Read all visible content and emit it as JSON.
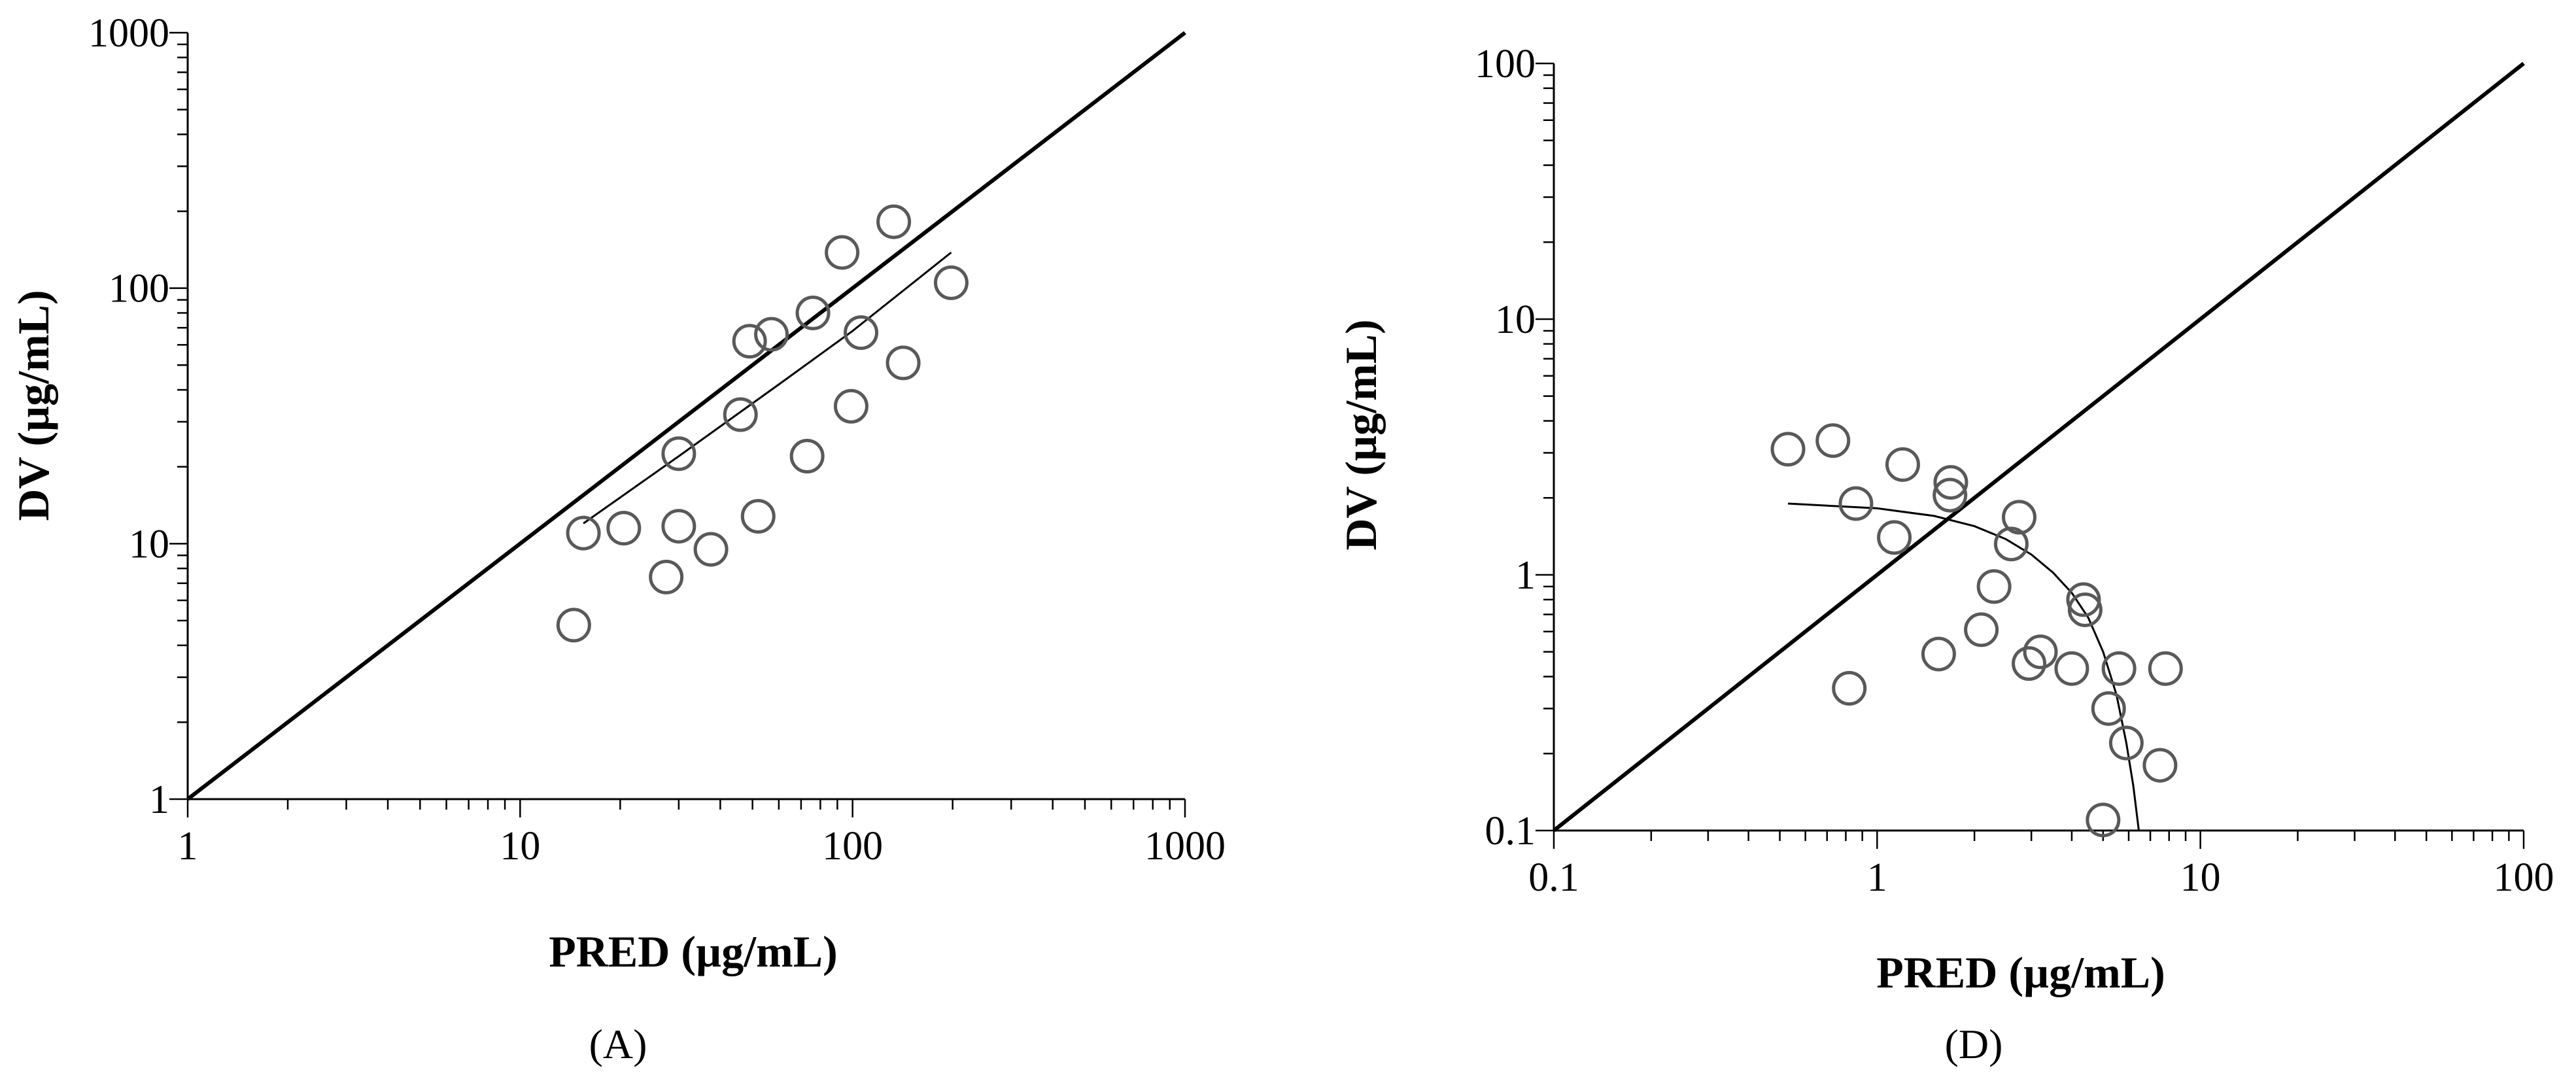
{
  "chart_data": [
    {
      "type": "scatter",
      "panel_label": "(A)",
      "xlabel": "PRED (µg/mL)",
      "ylabel": "DV (µg/mL)",
      "xscale": "log",
      "yscale": "log",
      "xlim": [
        1,
        1000
      ],
      "ylim": [
        1,
        1000
      ],
      "xticks": [
        {
          "value": 1,
          "label": "1"
        },
        {
          "value": 10,
          "label": "10"
        },
        {
          "value": 100,
          "label": "100"
        },
        {
          "value": 1000,
          "label": "1000"
        }
      ],
      "yticks": [
        {
          "value": 1,
          "label": "1"
        },
        {
          "value": 10,
          "label": "10"
        },
        {
          "value": 100,
          "label": "100"
        },
        {
          "value": 1000,
          "label": "1000"
        }
      ],
      "grid": false,
      "identity_line": {
        "name": "line of identity",
        "x": [
          1,
          1000
        ],
        "y": [
          1,
          1000
        ]
      },
      "series": [
        {
          "name": "observations",
          "marker": "open-circle",
          "points": [
            {
              "x": 14.5,
              "y": 4.8
            },
            {
              "x": 15.5,
              "y": 11
            },
            {
              "x": 20.5,
              "y": 11.5
            },
            {
              "x": 27.5,
              "y": 7.4
            },
            {
              "x": 30,
              "y": 22.5
            },
            {
              "x": 30,
              "y": 11.7
            },
            {
              "x": 37.5,
              "y": 9.5
            },
            {
              "x": 46,
              "y": 32
            },
            {
              "x": 49,
              "y": 62
            },
            {
              "x": 52,
              "y": 12.8
            },
            {
              "x": 57,
              "y": 66
            },
            {
              "x": 73,
              "y": 22
            },
            {
              "x": 76,
              "y": 80
            },
            {
              "x": 93,
              "y": 138
            },
            {
              "x": 99,
              "y": 34.5
            },
            {
              "x": 106,
              "y": 67
            },
            {
              "x": 133,
              "y": 182
            },
            {
              "x": 142,
              "y": 51
            },
            {
              "x": 198,
              "y": 105
            }
          ]
        },
        {
          "name": "trend",
          "type": "line",
          "points": [
            {
              "x": 15.5,
              "y": 12
            },
            {
              "x": 30,
              "y": 22
            },
            {
              "x": 60,
              "y": 42
            },
            {
              "x": 100,
              "y": 68
            },
            {
              "x": 198,
              "y": 138
            }
          ]
        }
      ]
    },
    {
      "type": "scatter",
      "panel_label": "(D)",
      "xlabel": "PRED (µg/mL)",
      "ylabel": "DV (µg/mL)",
      "xscale": "log",
      "yscale": "log",
      "xlim": [
        0.1,
        100
      ],
      "ylim": [
        0.1,
        100
      ],
      "xticks": [
        {
          "value": 0.1,
          "label": "0.1"
        },
        {
          "value": 1,
          "label": "1"
        },
        {
          "value": 10,
          "label": "10"
        },
        {
          "value": 100,
          "label": "100"
        }
      ],
      "yticks": [
        {
          "value": 0.1,
          "label": "0.1"
        },
        {
          "value": 1,
          "label": "1"
        },
        {
          "value": 10,
          "label": "10"
        },
        {
          "value": 100,
          "label": "100"
        }
      ],
      "grid": false,
      "identity_line": {
        "name": "line of identity",
        "x": [
          0.1,
          100
        ],
        "y": [
          0.1,
          100
        ]
      },
      "series": [
        {
          "name": "observations",
          "marker": "open-circle",
          "points": [
            {
              "x": 0.53,
              "y": 3.1
            },
            {
              "x": 0.73,
              "y": 3.35
            },
            {
              "x": 0.82,
              "y": 0.36
            },
            {
              "x": 0.86,
              "y": 1.9
            },
            {
              "x": 1.13,
              "y": 1.4
            },
            {
              "x": 1.2,
              "y": 2.7
            },
            {
              "x": 1.55,
              "y": 0.49
            },
            {
              "x": 1.68,
              "y": 2.05
            },
            {
              "x": 1.69,
              "y": 2.3
            },
            {
              "x": 2.1,
              "y": 0.61
            },
            {
              "x": 2.3,
              "y": 0.9
            },
            {
              "x": 2.6,
              "y": 1.32
            },
            {
              "x": 2.75,
              "y": 1.68
            },
            {
              "x": 2.95,
              "y": 0.45
            },
            {
              "x": 3.2,
              "y": 0.5
            },
            {
              "x": 4.0,
              "y": 0.43
            },
            {
              "x": 4.35,
              "y": 0.8
            },
            {
              "x": 4.4,
              "y": 0.73
            },
            {
              "x": 5.0,
              "y": 0.11
            },
            {
              "x": 5.2,
              "y": 0.3
            },
            {
              "x": 5.6,
              "y": 0.43
            },
            {
              "x": 5.9,
              "y": 0.22
            },
            {
              "x": 7.5,
              "y": 0.18
            },
            {
              "x": 7.8,
              "y": 0.43
            }
          ]
        },
        {
          "name": "trend",
          "type": "line",
          "points": [
            {
              "x": 0.53,
              "y": 1.9
            },
            {
              "x": 1.0,
              "y": 1.82
            },
            {
              "x": 1.5,
              "y": 1.7
            },
            {
              "x": 2.0,
              "y": 1.55
            },
            {
              "x": 2.5,
              "y": 1.38
            },
            {
              "x": 3.0,
              "y": 1.2
            },
            {
              "x": 3.5,
              "y": 1.02
            },
            {
              "x": 4.0,
              "y": 0.85
            },
            {
              "x": 4.5,
              "y": 0.68
            },
            {
              "x": 5.0,
              "y": 0.5
            },
            {
              "x": 5.5,
              "y": 0.34
            },
            {
              "x": 5.9,
              "y": 0.22
            },
            {
              "x": 6.2,
              "y": 0.15
            },
            {
              "x": 6.45,
              "y": 0.1
            }
          ]
        }
      ]
    }
  ]
}
